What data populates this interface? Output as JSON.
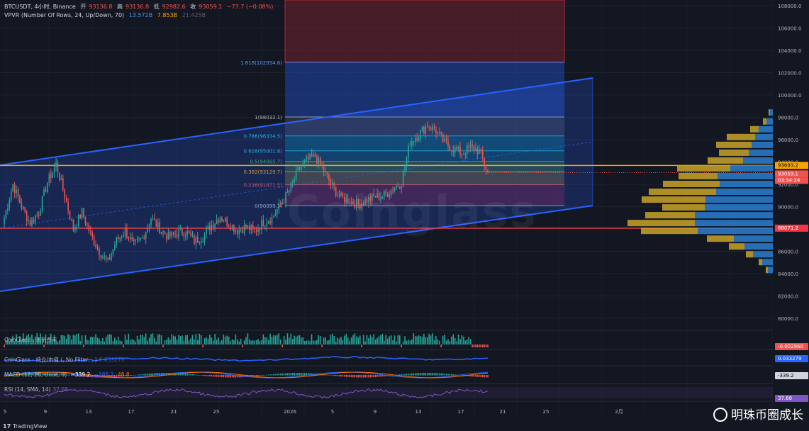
{
  "header": {
    "symbol": "BTCUSDT, 4小时, Binance",
    "open_label": "开",
    "open": "93136.8",
    "high_label": "高",
    "high": "93136.8",
    "low_label": "低",
    "low": "92982.6",
    "close_label": "收",
    "close": "93059.1",
    "change": "−77.7 (−0.08%)",
    "vpvr_label": "VPVR (Number Of Rows, 24, Up/Down, 70)",
    "vpvr_up": "13.572B",
    "vpvr_down": "7.853B",
    "vpvr_total": "21.425B"
  },
  "colors": {
    "background": "#131722",
    "up": "#26a69a",
    "down": "#ef5350",
    "channel": "#2962ff",
    "h_yellow": "#f7a600",
    "h_red": "#f23645",
    "vp_up": "#2a7fd1",
    "vp_down": "#c9a227",
    "macd": "#2962ff",
    "rsi": "#7e57c2"
  },
  "price_axis": {
    "ticks": [
      "108000.0",
      "106000.0",
      "104000.0",
      "102000.0",
      "100000.0",
      "98000.0",
      "96000.0",
      "94000.0",
      "92000.0",
      "90000.0",
      "88000.0",
      "86000.0",
      "84000.0",
      "82000.0",
      "80000.0"
    ],
    "marker_yellow": "93693.2",
    "marker_current": "93059.1",
    "marker_countdown": "03:34:24",
    "marker_red": "88071.2"
  },
  "indicator_axis": {
    "cg_value": "-0.002960",
    "oi_value": "0.033279",
    "macd_value": "-339.2",
    "rsi_value": "37.68"
  },
  "panels": {
    "cg_label": "CoinGlass - 资金费率",
    "oi_label": "CoinGlass - 持仓/市值 (, No Filter, , )",
    "oi_value": "0.033279",
    "macd_label": "MACD (12, 26, close, 9)",
    "macd_v1": "−339.2",
    "macd_v2": "−388.1",
    "macd_v3": "48.8",
    "rsi_label": "RSI (14, SMA, 14)",
    "rsi_value": "37.68"
  },
  "fib_labels": [
    {
      "text": "1.618(102934.6)",
      "color": "#5b9cf6"
    },
    {
      "text": "1(98032.1)",
      "color": "#b2b5be"
    },
    {
      "text": "0.786(96334.5)",
      "color": "#26c6da"
    },
    {
      "text": "0.618(95001.8)",
      "color": "#26c6da"
    },
    {
      "text": "0.5(94065.7)",
      "color": "#4caf50"
    },
    {
      "text": "0.382(93129.7)",
      "color": "#f7a600"
    },
    {
      "text": "0.236(91971.5)",
      "color": "#ef5350"
    },
    {
      "text": "0(90099.3)",
      "color": "#b2b5be"
    }
  ],
  "time_axis": [
    "5",
    "9",
    "13",
    "17",
    "21",
    "25",
    "2026",
    "5",
    "9",
    "13",
    "17",
    "21",
    "25",
    "2月"
  ],
  "watermark": {
    "brand": "Coinglass",
    "footer_logo": "TradingView",
    "author": "明珠币圈成长"
  },
  "chart_data": {
    "type": "candlestick",
    "symbol": "BTCUSDT",
    "timeframe": "4小时",
    "exchange": "Binance",
    "ylim": [
      79000,
      109000
    ],
    "x_ticks": [
      "5",
      "9",
      "13",
      "17",
      "21",
      "25",
      "2026",
      "5",
      "9",
      "13",
      "17",
      "21",
      "25",
      "2月"
    ],
    "close_path_approx": [
      89000,
      92000,
      90000,
      88500,
      89500,
      92200,
      93800,
      91000,
      88000,
      89500,
      87500,
      86000,
      85000,
      87000,
      87800,
      86500,
      87200,
      89000,
      88000,
      87300,
      87600,
      87800,
      86900,
      87300,
      88400,
      89100,
      88500,
      87900,
      88200,
      87800,
      88600,
      89000,
      90200,
      91400,
      93200,
      94100,
      94500,
      93200,
      91800,
      90800,
      90500,
      90200,
      90600,
      90900,
      91000,
      91600,
      92200,
      95800,
      96500,
      97300,
      96800,
      95700,
      95200,
      94800,
      95300,
      95000,
      93059
    ],
    "fibonacci": [
      {
        "ratio": "1.618",
        "price": 102934.6
      },
      {
        "ratio": "1",
        "price": 98032.1
      },
      {
        "ratio": "0.786",
        "price": 96334.5
      },
      {
        "ratio": "0.618",
        "price": 95001.8
      },
      {
        "ratio": "0.5",
        "price": 94065.7
      },
      {
        "ratio": "0.382",
        "price": 93129.7
      },
      {
        "ratio": "0.236",
        "price": 91971.5
      },
      {
        "ratio": "0",
        "price": 90099.3
      }
    ],
    "horizontal_lines": [
      93693.2,
      88071.2
    ],
    "current_price": 93059.1,
    "volume_profile": {
      "up_total": "13.572B",
      "down_total": "7.853B",
      "total": "21.425B"
    }
  }
}
